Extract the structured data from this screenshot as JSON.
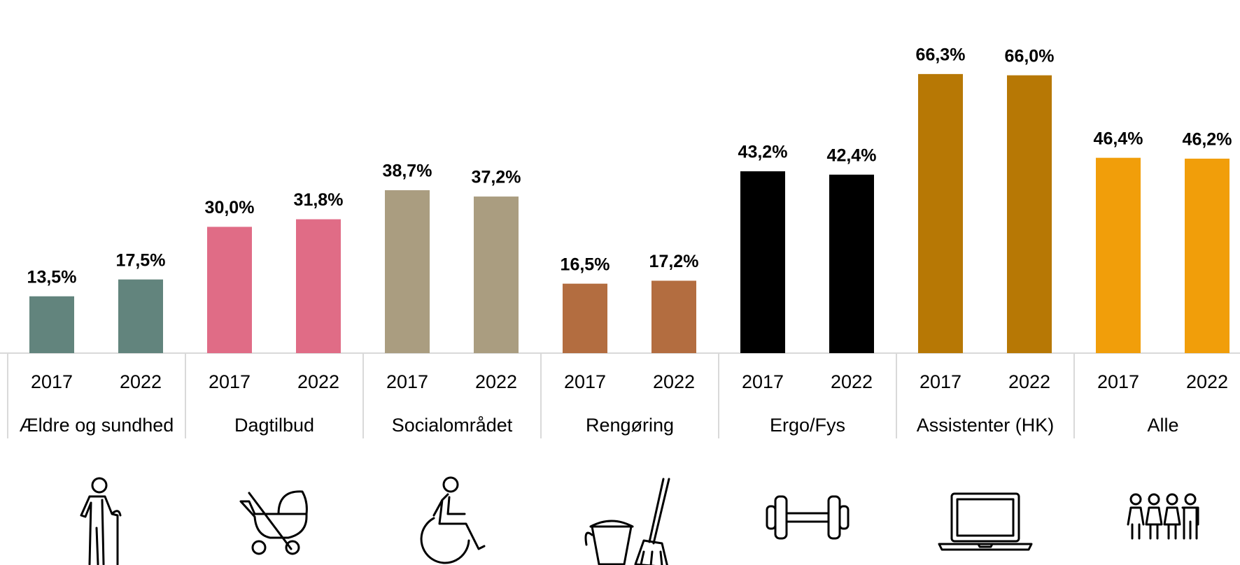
{
  "chart_data": {
    "type": "bar",
    "groups": [
      {
        "name": "Ældre og sundhed",
        "color": "#62847d",
        "categories": [
          "2017",
          "2022"
        ],
        "values": [
          13.5,
          17.5
        ],
        "value_labels": [
          "13,5%",
          "17,5%"
        ]
      },
      {
        "name": "Dagtilbud",
        "color": "#e06c86",
        "categories": [
          "2017",
          "2022"
        ],
        "values": [
          30.0,
          31.8
        ],
        "value_labels": [
          "30,0%",
          "31,8%"
        ]
      },
      {
        "name": "Socialområdet",
        "color": "#aa9d80",
        "categories": [
          "2017",
          "2022"
        ],
        "values": [
          38.7,
          37.2
        ],
        "value_labels": [
          "38,7%",
          "37,2%"
        ]
      },
      {
        "name": "Rengøring",
        "color": "#b36d40",
        "categories": [
          "2017",
          "2022"
        ],
        "values": [
          16.5,
          17.2
        ],
        "value_labels": [
          "16,5%",
          "17,2%"
        ]
      },
      {
        "name": "Ergo/Fys",
        "color": "#000000",
        "categories": [
          "2017",
          "2022"
        ],
        "values": [
          43.2,
          42.4
        ],
        "value_labels": [
          "43,2%",
          "42,4%"
        ]
      },
      {
        "name": "Assistenter (HK)",
        "color": "#b77805",
        "categories": [
          "2017",
          "2022"
        ],
        "values": [
          66.3,
          66.0
        ],
        "value_labels": [
          "66,3%",
          "66,0%"
        ]
      },
      {
        "name": "Alle",
        "color": "#f19e0a",
        "categories": [
          "2017",
          "2022"
        ],
        "values": [
          46.4,
          46.2
        ],
        "value_labels": [
          "46,4%",
          "46,2%"
        ]
      }
    ]
  }
}
